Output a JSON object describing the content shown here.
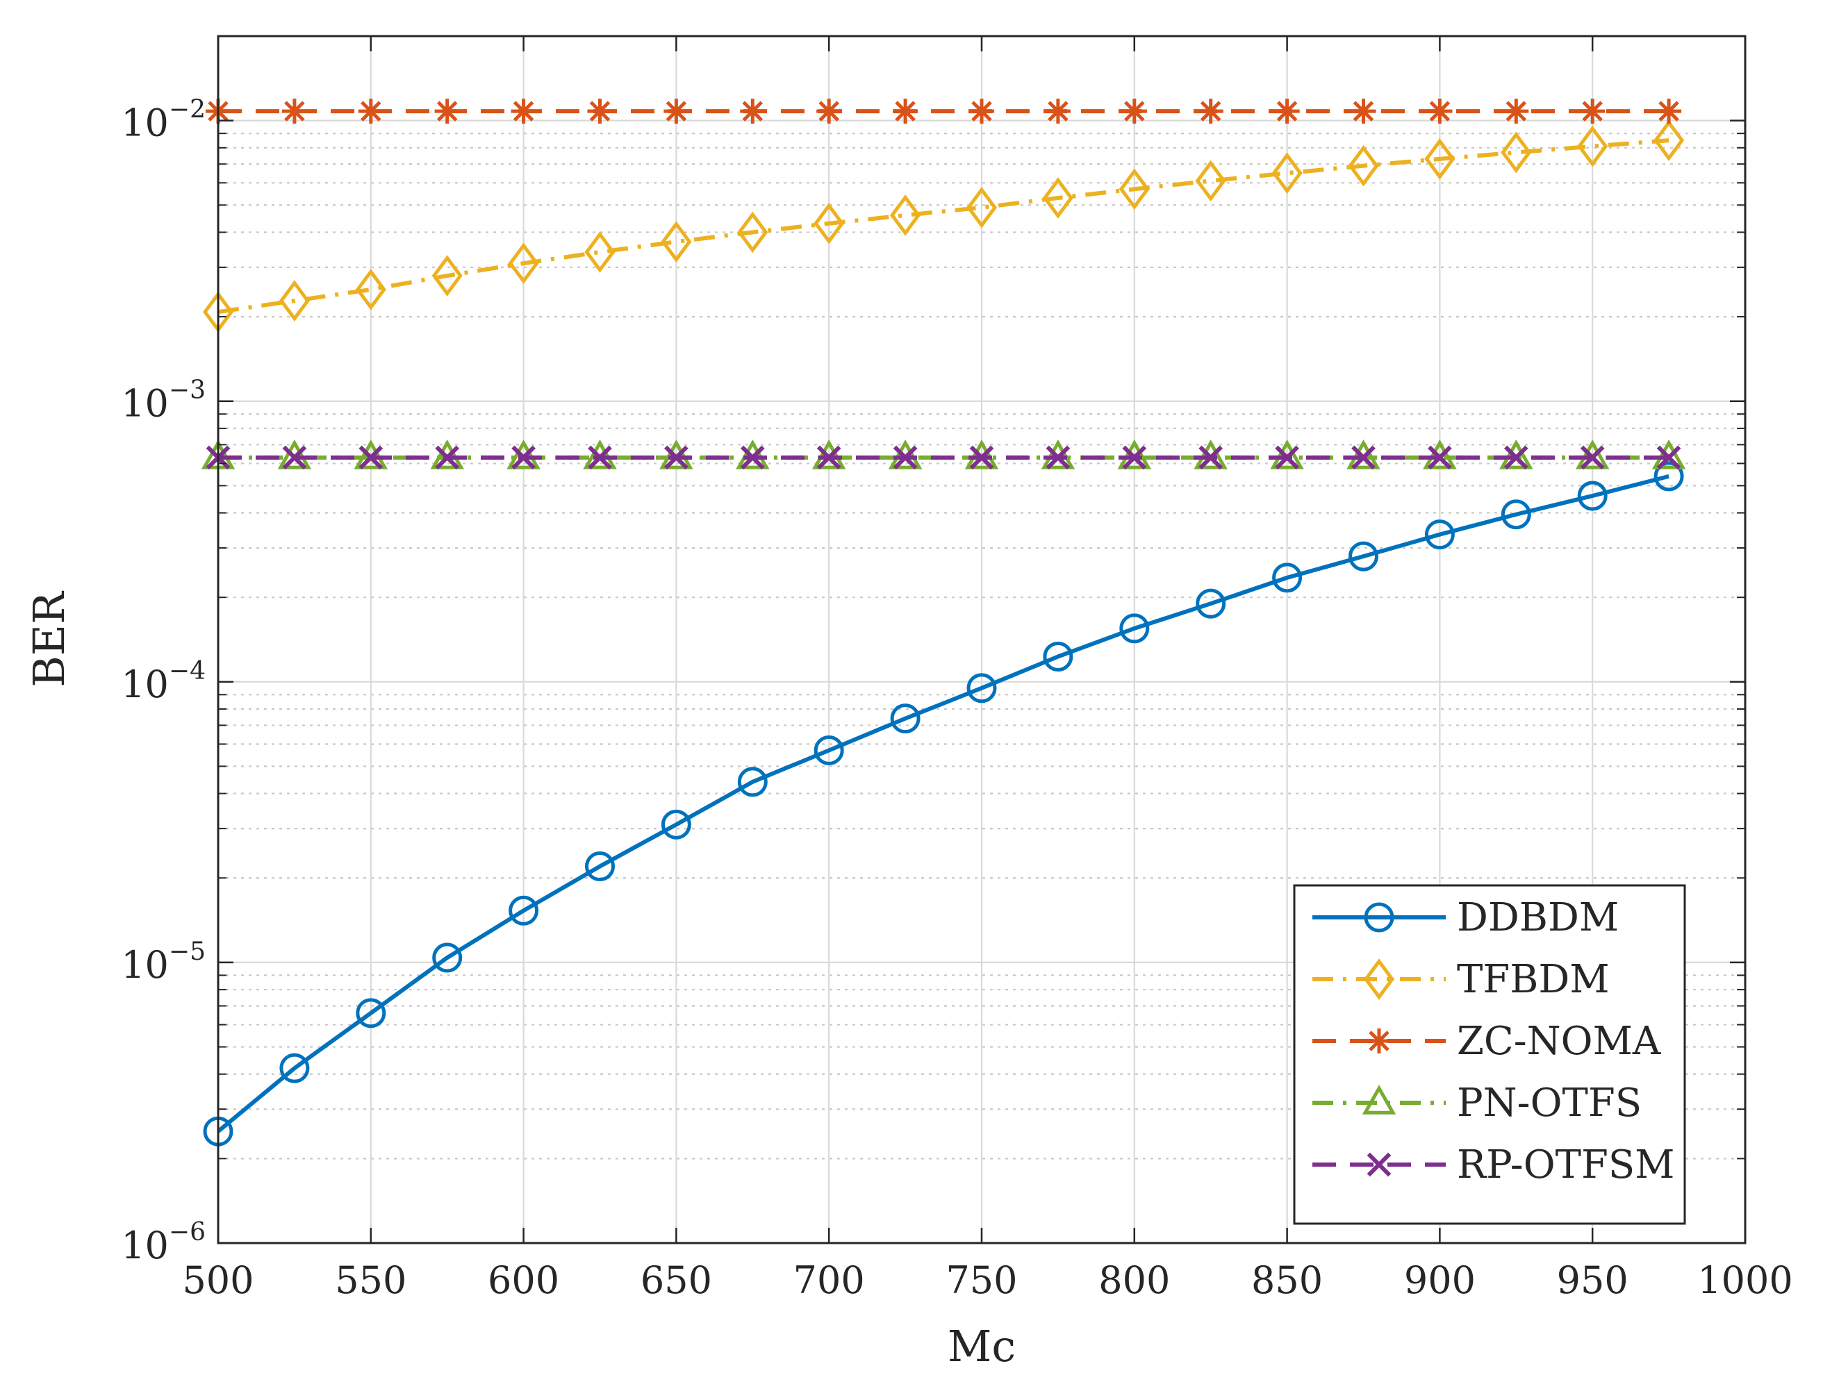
{
  "chart_data": {
    "type": "line",
    "title": "",
    "xlabel": "Mc",
    "ylabel": "BER",
    "xlim": [
      500,
      1000
    ],
    "ylim": [
      1e-06,
      0.02
    ],
    "yscale": "log",
    "grid": true,
    "x_ticks": [
      500,
      550,
      600,
      650,
      700,
      750,
      800,
      850,
      900,
      950,
      1000
    ],
    "x_tick_labels": [
      "500",
      "550",
      "600",
      "650",
      "700",
      "750",
      "800",
      "850",
      "900",
      "950",
      "1000"
    ],
    "y_ticks": [
      {
        "value": 0.01,
        "base": "10",
        "exp": "−2"
      },
      {
        "value": 0.001,
        "base": "10",
        "exp": "−3"
      },
      {
        "value": 0.0001,
        "base": "10",
        "exp": "−4"
      },
      {
        "value": 1e-05,
        "base": "10",
        "exp": "−5"
      },
      {
        "value": 1e-06,
        "base": "10",
        "exp": "−6"
      }
    ],
    "legend_position": "bottom-right",
    "x": [
      500,
      525,
      550,
      575,
      600,
      625,
      650,
      675,
      700,
      725,
      750,
      775,
      800,
      825,
      850,
      875,
      900,
      925,
      950,
      975
    ],
    "series": [
      {
        "name": "DDBDM",
        "color": "#0072BD",
        "dash": "solid",
        "marker": "circle",
        "values": [
          2.5e-06,
          4.2e-06,
          6.6e-06,
          1.04e-05,
          1.53e-05,
          2.2e-05,
          3.1e-05,
          4.4e-05,
          5.7e-05,
          7.4e-05,
          9.5e-05,
          0.000123,
          0.000155,
          0.00019,
          0.000235,
          0.00028,
          0.000335,
          0.000395,
          0.00046,
          0.00054
        ]
      },
      {
        "name": "TFBDM",
        "color": "#EDB120",
        "dash": "dashdot",
        "marker": "diamond",
        "values": [
          0.00208,
          0.00228,
          0.0025,
          0.0028,
          0.0031,
          0.0034,
          0.0037,
          0.004,
          0.0043,
          0.0046,
          0.0049,
          0.0053,
          0.0057,
          0.0061,
          0.0065,
          0.0069,
          0.0073,
          0.0077,
          0.0081,
          0.0085
        ]
      },
      {
        "name": "ZC-NOMA",
        "color": "#D95319",
        "dash": "dashed",
        "marker": "asterisk",
        "values": [
          0.0108,
          0.0108,
          0.0108,
          0.0108,
          0.0108,
          0.0108,
          0.0108,
          0.0108,
          0.0108,
          0.0108,
          0.0108,
          0.0108,
          0.0108,
          0.0108,
          0.0108,
          0.0108,
          0.0108,
          0.0108,
          0.0108,
          0.0108
        ]
      },
      {
        "name": "PN-OTFS",
        "color": "#77AC30",
        "dash": "dashdot",
        "marker": "triangle",
        "values": [
          0.00063,
          0.00063,
          0.00063,
          0.00063,
          0.00063,
          0.00063,
          0.00063,
          0.00063,
          0.00063,
          0.00063,
          0.00063,
          0.00063,
          0.00063,
          0.00063,
          0.00063,
          0.00063,
          0.00063,
          0.00063,
          0.00063,
          0.00063
        ]
      },
      {
        "name": "RP-OTFSM",
        "color": "#7E2F8E",
        "dash": "dashed",
        "marker": "x",
        "values": [
          0.00063,
          0.00063,
          0.00063,
          0.00063,
          0.00063,
          0.00063,
          0.00063,
          0.00063,
          0.00063,
          0.00063,
          0.00063,
          0.00063,
          0.00063,
          0.00063,
          0.00063,
          0.00063,
          0.00063,
          0.00063,
          0.00063,
          0.00063
        ]
      }
    ]
  }
}
